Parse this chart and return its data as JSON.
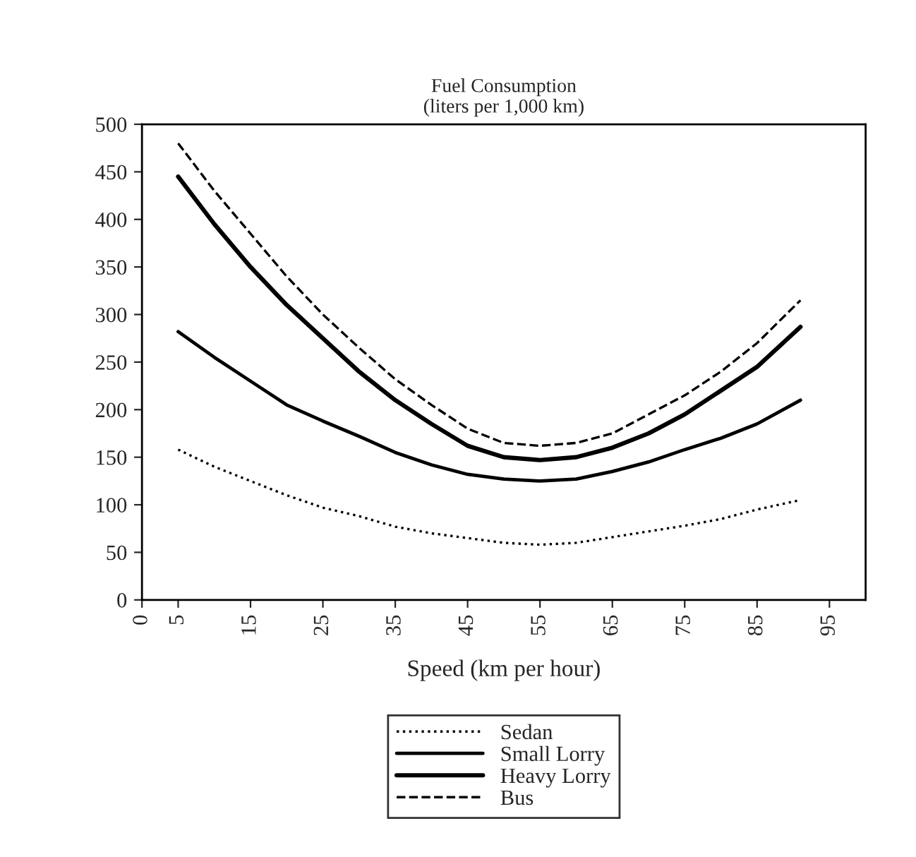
{
  "chart_data": {
    "type": "line",
    "title": "Fuel Consumption\n(liters per 1,000 km)",
    "xlabel": "Speed (km per hour)",
    "x": [
      5,
      10,
      15,
      20,
      25,
      30,
      35,
      40,
      45,
      50,
      55,
      60,
      65,
      70,
      75,
      80,
      85,
      91
    ],
    "series": [
      {
        "name": "Sedan",
        "color": "#000000",
        "line_style": "dotted",
        "values": [
          158,
          140,
          125,
          110,
          97,
          88,
          77,
          70,
          65,
          60,
          58,
          60,
          66,
          72,
          78,
          85,
          95,
          105
        ]
      },
      {
        "name": "Small Lorry",
        "color": "#000000",
        "line_style": "solid",
        "values": [
          282,
          255,
          230,
          205,
          188,
          172,
          155,
          142,
          132,
          127,
          125,
          127,
          135,
          145,
          158,
          170,
          185,
          210
        ]
      },
      {
        "name": "Heavy Lorry",
        "color": "#000000",
        "line_style": "solid",
        "values": [
          445,
          395,
          350,
          310,
          275,
          240,
          210,
          185,
          162,
          150,
          147,
          150,
          160,
          175,
          195,
          220,
          245,
          287
        ]
      },
      {
        "name": "Bus",
        "color": "#000000",
        "line_style": "dashed",
        "values": [
          480,
          430,
          385,
          340,
          300,
          265,
          232,
          205,
          180,
          165,
          162,
          165,
          175,
          195,
          215,
          240,
          270,
          315
        ]
      }
    ],
    "xlim": [
      0,
      100
    ],
    "xticks": [
      0,
      5,
      15,
      25,
      35,
      45,
      55,
      65,
      75,
      85,
      95
    ],
    "ylim": [
      0,
      500
    ],
    "yticks": [
      0,
      50,
      100,
      150,
      200,
      250,
      300,
      350,
      400,
      450,
      500
    ],
    "grid": false,
    "legend": "bottom",
    "marker": "none"
  }
}
